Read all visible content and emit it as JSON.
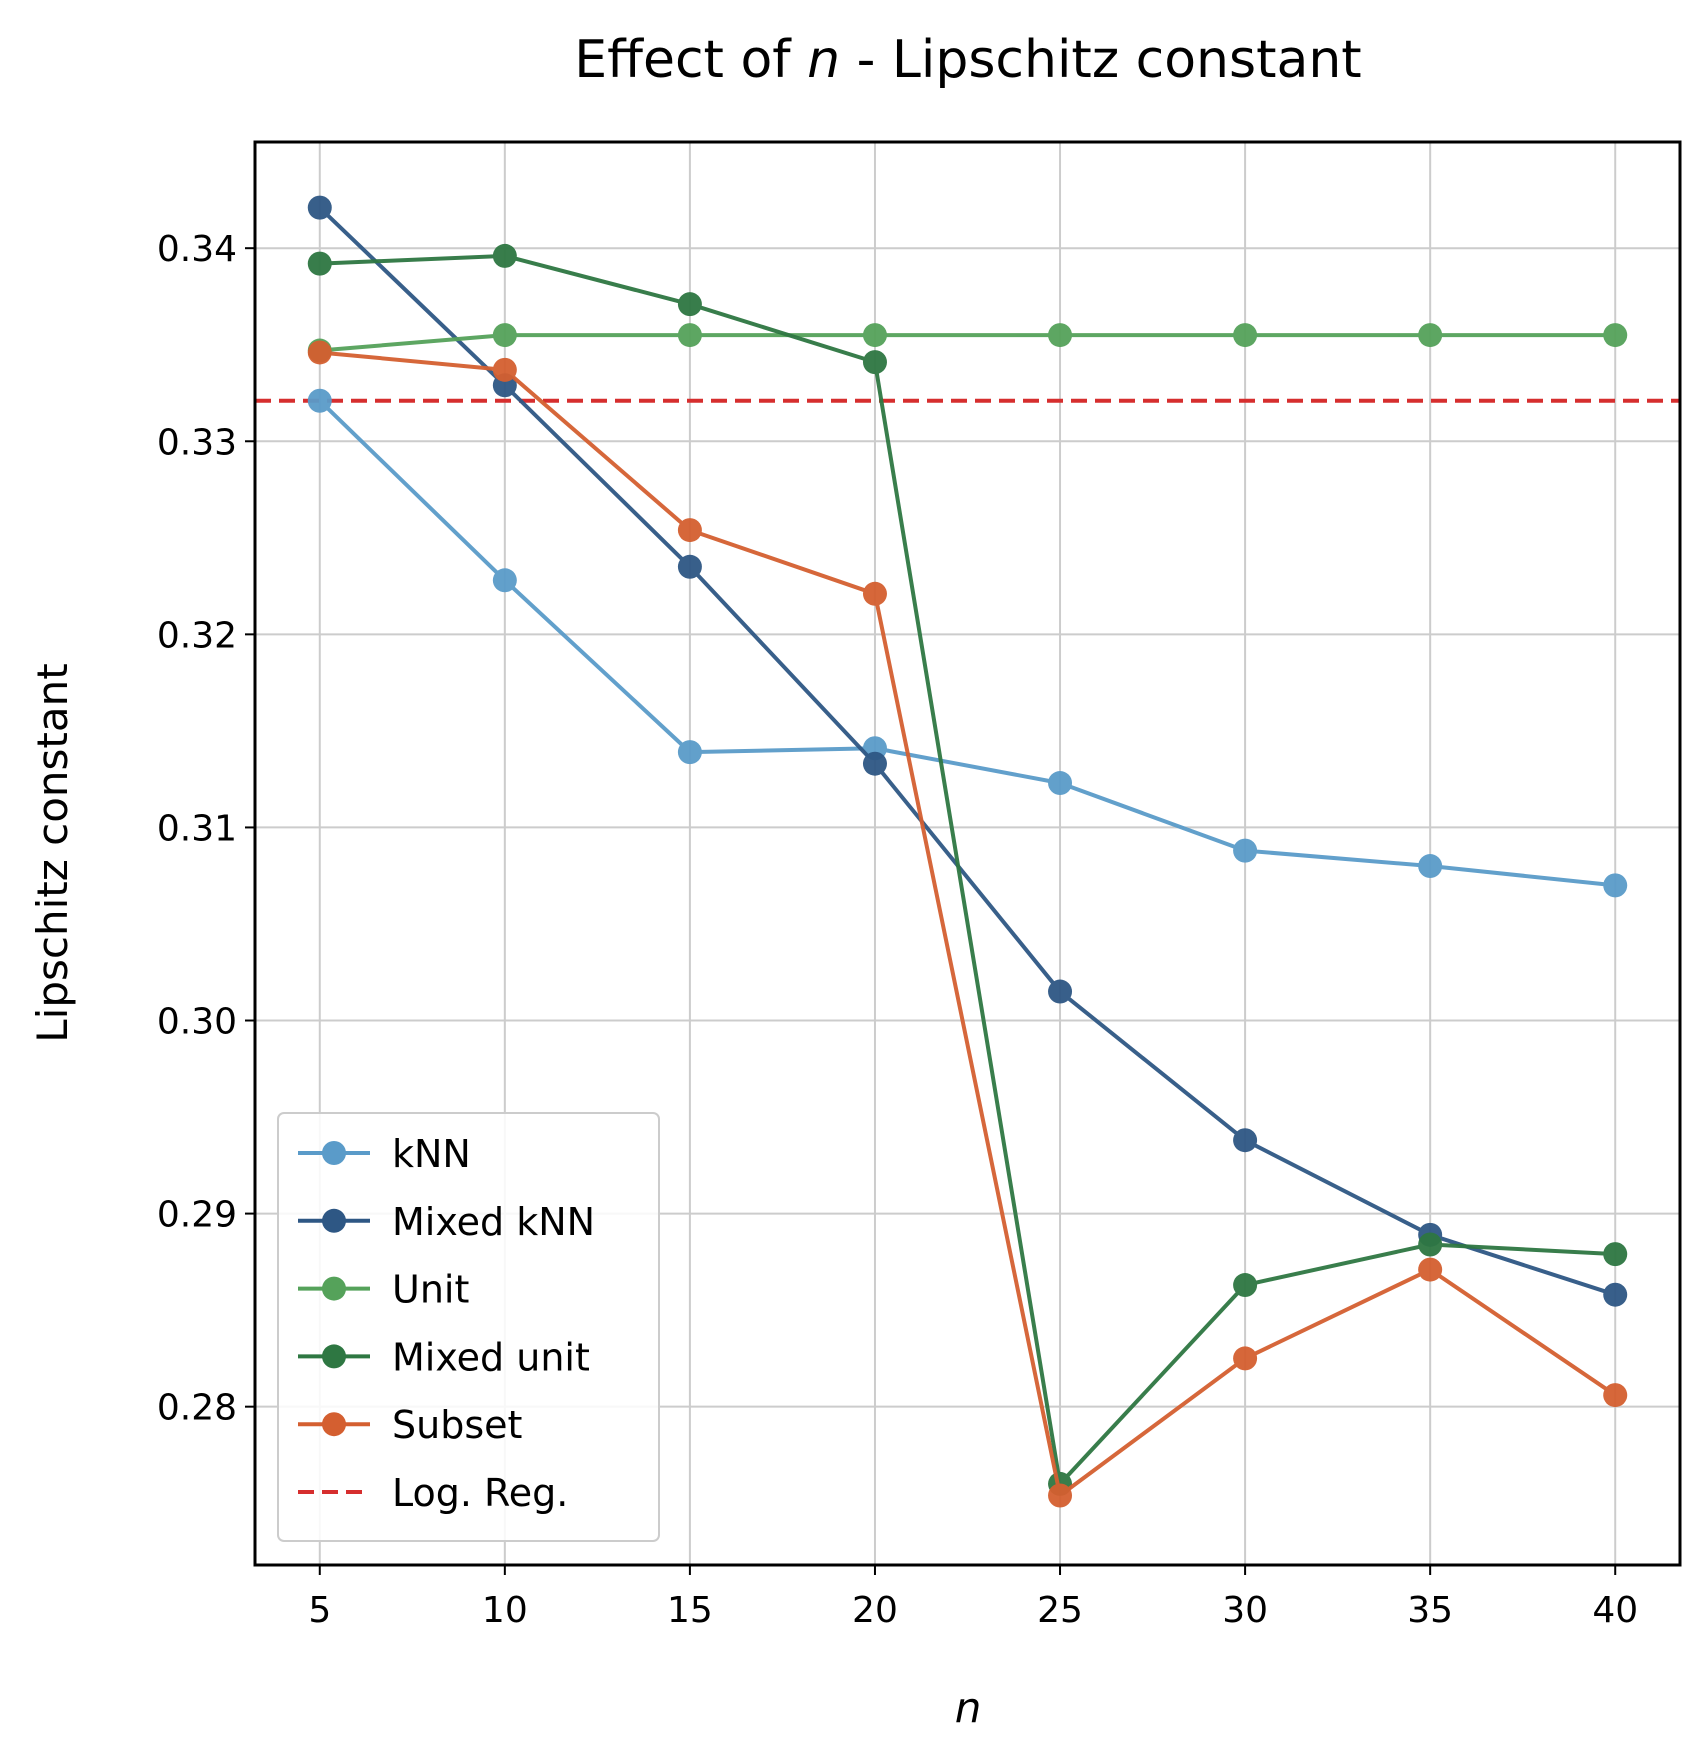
{
  "chart_data": {
    "type": "line",
    "title_prefix": "Effect of ",
    "title_var": "n",
    "title_suffix": " - Lipschitz constant",
    "xlabel": "n",
    "ylabel": "Lipschitz constant",
    "x": [
      5,
      10,
      15,
      20,
      25,
      30,
      35,
      40
    ],
    "xlim": [
      3.25,
      41.75
    ],
    "ylim": [
      0.2718,
      0.3455
    ],
    "x_ticks": [
      5,
      10,
      15,
      20,
      25,
      30,
      35,
      40
    ],
    "x_tick_labels": [
      "5",
      "10",
      "15",
      "20",
      "25",
      "30",
      "35",
      "40"
    ],
    "y_ticks": [
      0.28,
      0.29,
      0.3,
      0.31,
      0.32,
      0.33,
      0.34
    ],
    "y_tick_labels": [
      "0.28",
      "0.29",
      "0.30",
      "0.31",
      "0.32",
      "0.33",
      "0.34"
    ],
    "grid": true,
    "legend_position": "lower-left",
    "series": [
      {
        "name": "kNN",
        "color": "#5a9bc9",
        "style": "solid-marker",
        "values": [
          0.3321,
          0.3228,
          0.3139,
          0.3141,
          0.3123,
          0.3088,
          0.308,
          0.307
        ]
      },
      {
        "name": "Mixed kNN",
        "color": "#2e5784",
        "style": "solid-marker",
        "values": [
          0.3421,
          0.3329,
          0.3235,
          0.3133,
          0.3015,
          0.2938,
          0.2889,
          0.2858
        ]
      },
      {
        "name": "Unit",
        "color": "#55a25a",
        "style": "solid-marker",
        "values": [
          0.3347,
          0.3355,
          0.3355,
          0.3355,
          0.3355,
          0.3355,
          0.3355,
          0.3355
        ]
      },
      {
        "name": "Mixed unit",
        "color": "#2e7742",
        "style": "solid-marker",
        "values": [
          0.3392,
          0.3396,
          0.3371,
          0.3341,
          0.276,
          0.2863,
          0.2884,
          0.2879
        ]
      },
      {
        "name": "Subset",
        "color": "#d45f30",
        "style": "solid-marker",
        "values": [
          0.3346,
          0.3337,
          0.3254,
          0.3221,
          0.2754,
          0.2825,
          0.2871,
          0.2806
        ]
      }
    ],
    "reference_line": {
      "name": "Log. Reg.",
      "color": "#d62e2e",
      "style": "dashed",
      "value": 0.3321
    }
  }
}
